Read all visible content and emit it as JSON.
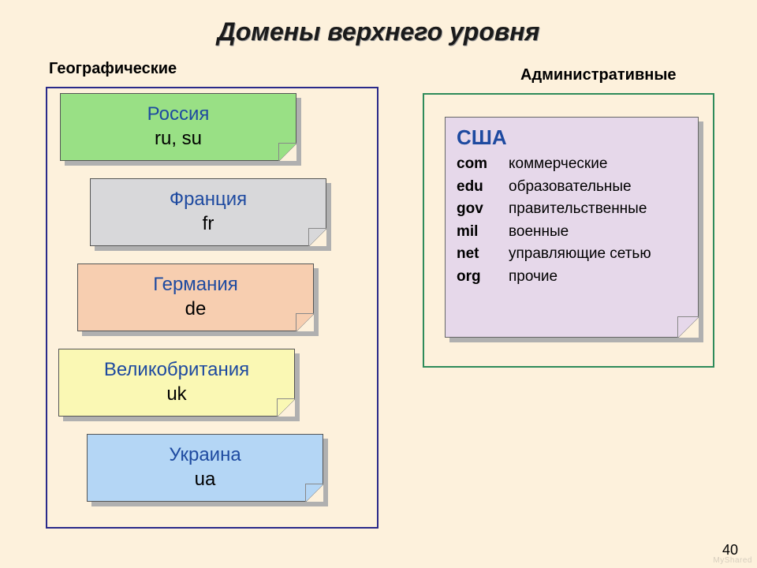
{
  "title": "Домены верхнего уровня",
  "labels": {
    "geo": "Географические",
    "admin": "Административные"
  },
  "colors": {
    "background": "#fdf1dc",
    "geo_border": "#2a2a8a",
    "admin_border": "#2e8b5a",
    "shadow": "#b0b0b0",
    "title_text": "#1a1a1a",
    "country_name": "#1e4aa0",
    "country_code": "#000000",
    "card_fills": [
      "#99e085",
      "#d8d8da",
      "#f7ceb0",
      "#faf8b4",
      "#b4d6f5"
    ],
    "admin_panel_fill": "#e6d8ea"
  },
  "geo_countries": [
    {
      "name": "Россия",
      "code": "ru, su"
    },
    {
      "name": "Франция",
      "code": "fr"
    },
    {
      "name": "Германия",
      "code": "de"
    },
    {
      "name": "Великобритания",
      "code": "uk"
    },
    {
      "name": "Украина",
      "code": "ua"
    }
  ],
  "admin_country": "США",
  "admin_rows": [
    {
      "code": "com",
      "desc": "коммерческие"
    },
    {
      "code": "edu",
      "desc": "образовательные"
    },
    {
      "code": "gov",
      "desc": "правительственные"
    },
    {
      "code": "mil",
      "desc": "военные"
    },
    {
      "code": "net",
      "desc": "управляющие сетью"
    },
    {
      "code": "org",
      "desc": "прочие"
    }
  ],
  "page_number": "40",
  "watermark": "MyShared"
}
